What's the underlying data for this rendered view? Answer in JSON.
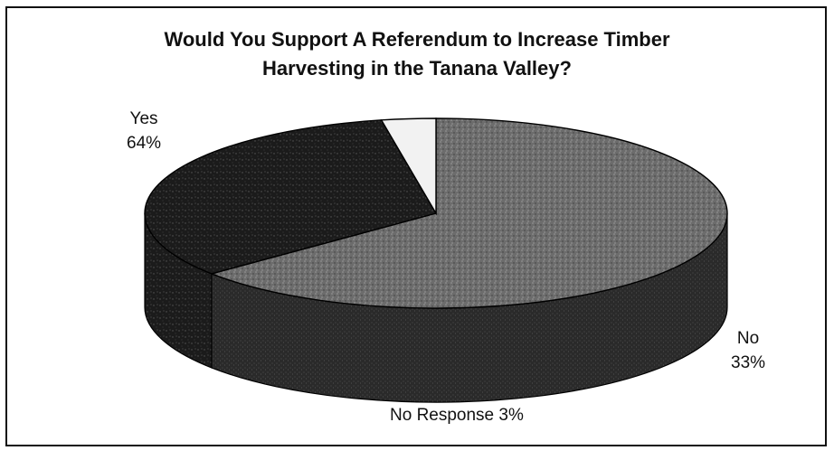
{
  "chart_data": {
    "type": "pie",
    "title": "Would You Support A Referendum to Increase Timber Harvesting in the Tanana Valley?",
    "title_lines": [
      "Would You Support A Referendum to Increase Timber",
      "Harvesting in the Tanana Valley?"
    ],
    "slices": [
      {
        "label": "Yes",
        "value": 64,
        "value_label": "64%",
        "color": "#6a6a6a"
      },
      {
        "label": "No",
        "value": 33,
        "value_label": "33%",
        "color": "#1c1c1c"
      },
      {
        "label": "No Response",
        "value": 3,
        "value_label": "No Response 3%",
        "color": "#f2f2f2"
      }
    ],
    "style": "3d"
  }
}
